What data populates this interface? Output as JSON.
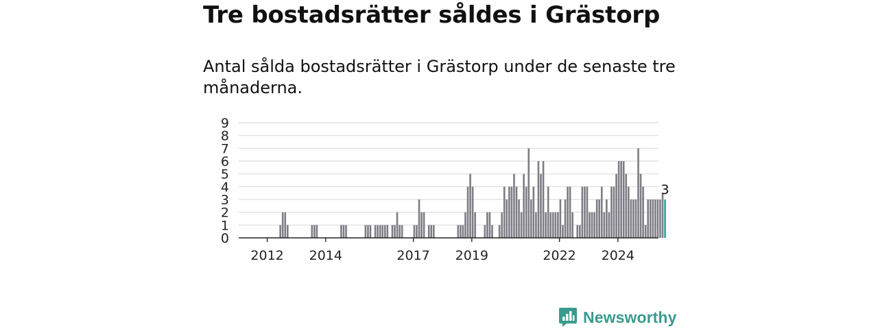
{
  "title": "Tre bostadsrätter såldes i Grästorp",
  "subtitle": "Antal sålda bostadsrätter i Grästorp under de senaste tre månaderna.",
  "brand": {
    "name": "Newsworthy"
  },
  "colors": {
    "bar": "#7d7c84",
    "highlight": "#22a89a",
    "grid": "#dddddd",
    "axis": "#222222",
    "brand": "#3a9a8e"
  },
  "chart_data": {
    "type": "bar",
    "x_unit": "month",
    "x_start": "2011-01",
    "x_end": "2025-03",
    "ylim": [
      0,
      9
    ],
    "yticks": [
      0,
      1,
      2,
      3,
      4,
      5,
      6,
      7,
      8,
      9
    ],
    "xticks": [
      "2012",
      "2014",
      "2017",
      "2019",
      "2022",
      "2024"
    ],
    "grid": true,
    "highlight_label": "3",
    "series": [
      {
        "values": [
          {
            "x": "2012-06",
            "y": 1
          },
          {
            "x": "2012-07",
            "y": 2
          },
          {
            "x": "2012-08",
            "y": 2
          },
          {
            "x": "2012-09",
            "y": 1
          },
          {
            "x": "2013-07",
            "y": 1
          },
          {
            "x": "2013-08",
            "y": 1
          },
          {
            "x": "2013-09",
            "y": 1
          },
          {
            "x": "2014-07",
            "y": 1
          },
          {
            "x": "2014-08",
            "y": 1
          },
          {
            "x": "2014-09",
            "y": 1
          },
          {
            "x": "2015-05",
            "y": 1
          },
          {
            "x": "2015-06",
            "y": 1
          },
          {
            "x": "2015-07",
            "y": 1
          },
          {
            "x": "2015-09",
            "y": 1
          },
          {
            "x": "2015-10",
            "y": 1
          },
          {
            "x": "2015-11",
            "y": 1
          },
          {
            "x": "2015-12",
            "y": 1
          },
          {
            "x": "2016-01",
            "y": 1
          },
          {
            "x": "2016-02",
            "y": 1
          },
          {
            "x": "2016-04",
            "y": 1
          },
          {
            "x": "2016-05",
            "y": 1
          },
          {
            "x": "2016-06",
            "y": 2
          },
          {
            "x": "2016-07",
            "y": 1
          },
          {
            "x": "2016-08",
            "y": 1
          },
          {
            "x": "2017-01",
            "y": 1
          },
          {
            "x": "2017-02",
            "y": 1
          },
          {
            "x": "2017-03",
            "y": 3
          },
          {
            "x": "2017-04",
            "y": 2
          },
          {
            "x": "2017-05",
            "y": 2
          },
          {
            "x": "2017-07",
            "y": 1
          },
          {
            "x": "2017-08",
            "y": 1
          },
          {
            "x": "2017-09",
            "y": 1
          },
          {
            "x": "2018-07",
            "y": 1
          },
          {
            "x": "2018-08",
            "y": 1
          },
          {
            "x": "2018-09",
            "y": 1
          },
          {
            "x": "2018-10",
            "y": 2
          },
          {
            "x": "2018-11",
            "y": 4
          },
          {
            "x": "2018-12",
            "y": 5
          },
          {
            "x": "2019-01",
            "y": 4
          },
          {
            "x": "2019-02",
            "y": 2
          },
          {
            "x": "2019-06",
            "y": 1
          },
          {
            "x": "2019-07",
            "y": 2
          },
          {
            "x": "2019-08",
            "y": 2
          },
          {
            "x": "2019-09",
            "y": 1
          },
          {
            "x": "2019-12",
            "y": 1
          },
          {
            "x": "2020-01",
            "y": 2
          },
          {
            "x": "2020-02",
            "y": 4
          },
          {
            "x": "2020-03",
            "y": 3
          },
          {
            "x": "2020-04",
            "y": 4
          },
          {
            "x": "2020-05",
            "y": 4
          },
          {
            "x": "2020-06",
            "y": 5
          },
          {
            "x": "2020-07",
            "y": 4
          },
          {
            "x": "2020-08",
            "y": 3
          },
          {
            "x": "2020-09",
            "y": 2
          },
          {
            "x": "2020-10",
            "y": 5
          },
          {
            "x": "2020-11",
            "y": 4
          },
          {
            "x": "2020-12",
            "y": 7
          },
          {
            "x": "2021-01",
            "y": 3
          },
          {
            "x": "2021-02",
            "y": 4
          },
          {
            "x": "2021-03",
            "y": 2
          },
          {
            "x": "2021-04",
            "y": 6
          },
          {
            "x": "2021-05",
            "y": 5
          },
          {
            "x": "2021-06",
            "y": 6
          },
          {
            "x": "2021-07",
            "y": 2
          },
          {
            "x": "2021-08",
            "y": 4
          },
          {
            "x": "2021-09",
            "y": 2
          },
          {
            "x": "2021-10",
            "y": 2
          },
          {
            "x": "2021-11",
            "y": 2
          },
          {
            "x": "2021-12",
            "y": 2
          },
          {
            "x": "2022-01",
            "y": 3
          },
          {
            "x": "2022-02",
            "y": 1
          },
          {
            "x": "2022-03",
            "y": 3
          },
          {
            "x": "2022-04",
            "y": 4
          },
          {
            "x": "2022-05",
            "y": 4
          },
          {
            "x": "2022-06",
            "y": 2
          },
          {
            "x": "2022-08",
            "y": 1
          },
          {
            "x": "2022-09",
            "y": 1
          },
          {
            "x": "2022-10",
            "y": 4
          },
          {
            "x": "2022-11",
            "y": 4
          },
          {
            "x": "2022-12",
            "y": 4
          },
          {
            "x": "2023-01",
            "y": 2
          },
          {
            "x": "2023-02",
            "y": 2
          },
          {
            "x": "2023-03",
            "y": 2
          },
          {
            "x": "2023-04",
            "y": 3
          },
          {
            "x": "2023-05",
            "y": 3
          },
          {
            "x": "2023-06",
            "y": 4
          },
          {
            "x": "2023-07",
            "y": 2
          },
          {
            "x": "2023-08",
            "y": 3
          },
          {
            "x": "2023-09",
            "y": 2
          },
          {
            "x": "2023-10",
            "y": 4
          },
          {
            "x": "2023-11",
            "y": 4
          },
          {
            "x": "2023-12",
            "y": 5
          },
          {
            "x": "2024-01",
            "y": 6
          },
          {
            "x": "2024-02",
            "y": 6
          },
          {
            "x": "2024-03",
            "y": 6
          },
          {
            "x": "2024-04",
            "y": 5
          },
          {
            "x": "2024-05",
            "y": 4
          },
          {
            "x": "2024-06",
            "y": 3
          },
          {
            "x": "2024-07",
            "y": 3
          },
          {
            "x": "2024-08",
            "y": 3
          },
          {
            "x": "2024-09",
            "y": 7
          },
          {
            "x": "2024-10",
            "y": 5
          },
          {
            "x": "2024-11",
            "y": 4
          },
          {
            "x": "2024-12",
            "y": 1
          },
          {
            "x": "2025-01",
            "y": 3
          },
          {
            "x": "2025-02",
            "y": 3
          },
          {
            "x": "2025-03",
            "y": 3
          },
          {
            "x": "2025-04",
            "y": 3
          },
          {
            "x": "2025-05",
            "y": 3
          },
          {
            "x": "2025-06",
            "y": 3
          },
          {
            "x": "2025-07",
            "y": 3.5
          },
          {
            "x": "2025-08",
            "y": 3
          }
        ]
      }
    ]
  }
}
